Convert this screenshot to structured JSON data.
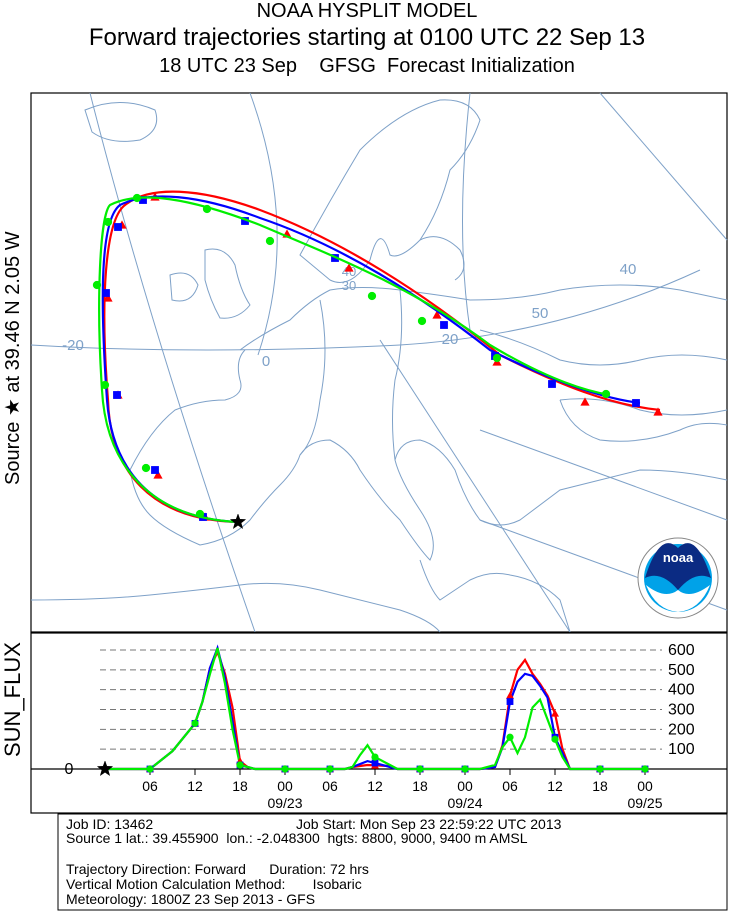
{
  "header": {
    "title": "NOAA HYSPLIT MODEL",
    "subtitle": "Forward trajectories starting at 0100 UTC 22 Sep 13",
    "subtitle2": "18 UTC 23 Sep    GFSG  Forecast Initialization"
  },
  "source_label": "Source ★ at   39.46 N   2.05 W",
  "noaa_logo": "noaa",
  "map": {
    "lon_labels": [
      "-20",
      "0",
      "20",
      "40",
      "50"
    ],
    "lat_labels": [
      "30",
      "40"
    ]
  },
  "chart_data": {
    "type": "line",
    "ylabel": "SUN_FLUX",
    "yticks": [
      100,
      200,
      300,
      400,
      500,
      600
    ],
    "zero_label": "0",
    "ylim": [
      0,
      600
    ],
    "xlim": [
      0,
      72
    ],
    "x_tick_labels": [
      "06",
      "12",
      "18",
      "00",
      "06",
      "12",
      "18",
      "00",
      "06",
      "12",
      "18",
      "00"
    ],
    "date_labels": [
      "09/23",
      "09/24",
      "09/25"
    ],
    "grid": "dashed horizontal",
    "series": [
      {
        "color": "#ff0000",
        "marker": "triangle",
        "x": [
          0,
          4,
          6,
          9,
          12,
          13,
          14,
          15,
          16,
          17,
          18,
          19,
          20,
          23,
          29,
          32,
          33,
          35,
          38,
          39,
          45,
          46,
          48,
          50,
          52,
          53,
          54,
          55,
          56,
          57,
          58,
          59,
          60,
          61,
          62,
          63,
          64,
          66,
          70,
          72
        ],
        "y": [
          0,
          0,
          0,
          90,
          230,
          340,
          510,
          590,
          480,
          310,
          40,
          10,
          0,
          0,
          0,
          0,
          10,
          20,
          15,
          0,
          0,
          0,
          0,
          0,
          10,
          120,
          370,
          500,
          550,
          480,
          430,
          370,
          280,
          100,
          0,
          0,
          0,
          0,
          0,
          0
        ]
      },
      {
        "color": "#0000ff",
        "marker": "square",
        "x": [
          0,
          4,
          6,
          9,
          12,
          13,
          14,
          15,
          16,
          17,
          18,
          19,
          20,
          23,
          29,
          32,
          33,
          35,
          38,
          39,
          45,
          46,
          48,
          50,
          52,
          53,
          54,
          55,
          56,
          57,
          58,
          59,
          60,
          61,
          62,
          63,
          64,
          66,
          70,
          72
        ],
        "y": [
          0,
          0,
          0,
          90,
          230,
          340,
          510,
          610,
          460,
          240,
          20,
          10,
          0,
          0,
          0,
          0,
          10,
          40,
          10,
          0,
          0,
          0,
          0,
          0,
          10,
          110,
          340,
          440,
          480,
          470,
          420,
          360,
          160,
          80,
          0,
          0,
          0,
          0,
          0,
          0
        ]
      },
      {
        "color": "#00ee00",
        "marker": "circle",
        "x": [
          0,
          4,
          6,
          9,
          12,
          13,
          14,
          15,
          16,
          17,
          18,
          19,
          20,
          23,
          29,
          32,
          33,
          34,
          35,
          36,
          38,
          39,
          45,
          46,
          48,
          50,
          52,
          53,
          54,
          55,
          56,
          57,
          58,
          59,
          60,
          61,
          62,
          63,
          64,
          66,
          70,
          72
        ],
        "y": [
          0,
          0,
          0,
          90,
          230,
          340,
          480,
          610,
          430,
          200,
          20,
          10,
          0,
          0,
          0,
          0,
          10,
          70,
          120,
          60,
          20,
          0,
          0,
          0,
          0,
          0,
          20,
          110,
          160,
          80,
          160,
          310,
          350,
          250,
          150,
          60,
          0,
          0,
          0,
          0,
          0,
          0
        ]
      }
    ]
  },
  "info": {
    "job_id": "Job ID: 13462",
    "job_start": "Job Start: Mon Sep 23 22:59:22 UTC 2013",
    "source_line": "Source 1 lat.: 39.455900  lon.: -2.048300  hgts: 8800, 9000, 9400 m AMSL",
    "direction": "Trajectory Direction: Forward      Duration: 72 hrs",
    "vertical": "Vertical Motion Calculation Method:       Isobaric",
    "meteorology": "Meteorology: 1800Z 23 Sep 2013 - GFS"
  },
  "colors": {
    "map_lines": "#7ea1c8",
    "red": "#ff0000",
    "blue": "#0000ff",
    "green": "#00ee00"
  }
}
